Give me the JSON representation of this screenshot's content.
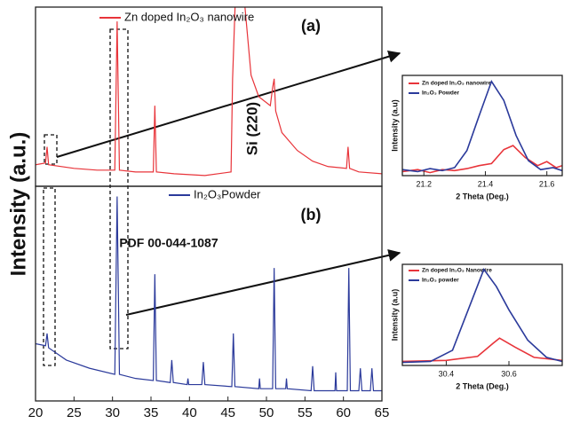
{
  "figure": {
    "ylabel": "Intensity (a.u.)"
  },
  "chart_data": [
    {
      "type": "line",
      "xlim": [
        20,
        65
      ],
      "ylim": [
        0,
        100
      ],
      "series": [
        {
          "name": "Zn doped In₂O₃ nanowire",
          "color": "#e8343a",
          "x": [
            20,
            21.3,
            21.5,
            21.7,
            25,
            28,
            30.3,
            30.6,
            30.9,
            33,
            35.3,
            35.5,
            35.7,
            38,
            42,
            45.4,
            45.6,
            46,
            47,
            48,
            49,
            50.5,
            50.8,
            51,
            51.2,
            52,
            54,
            56,
            58,
            60.4,
            60.6,
            60.8,
            62,
            65
          ],
          "values": [
            12,
            13,
            22,
            12,
            10,
            9,
            9,
            92,
            9,
            8,
            8,
            45,
            8,
            7,
            6,
            8,
            60,
            110,
            110,
            62,
            50,
            45,
            55,
            60,
            42,
            30,
            20,
            14,
            11,
            10,
            22,
            10,
            8,
            7
          ]
        }
      ],
      "annotations": [
        "(a)",
        "Si (220)"
      ]
    },
    {
      "type": "line",
      "xlim": [
        20,
        65
      ],
      "ylim": [
        0,
        105
      ],
      "xticks": [
        20,
        25,
        30,
        35,
        40,
        45,
        50,
        55,
        60,
        65
      ],
      "xlabel": "2 Theta (Deg.)",
      "series": [
        {
          "name": "In₂O₃Powder",
          "color": "#2b3a9b",
          "x": [
            20,
            21.3,
            21.5,
            21.7,
            24,
            27,
            30.3,
            30.6,
            30.9,
            33,
            35.3,
            35.5,
            35.7,
            37.5,
            37.7,
            37.9,
            39.7,
            39.8,
            39.9,
            41.6,
            41.8,
            42,
            45.5,
            45.7,
            45.9,
            49,
            49.1,
            49.2,
            50.8,
            51,
            51.2,
            52.5,
            52.6,
            52.7,
            55.8,
            56,
            56.2,
            58.9,
            59,
            59.1,
            60.5,
            60.7,
            60.9,
            62,
            62.2,
            62.4,
            63.5,
            63.7,
            63.9,
            65
          ],
          "values": [
            28,
            27,
            33,
            26,
            20,
            16,
            13,
            100,
            13,
            11,
            10,
            62,
            10,
            9,
            20,
            9,
            8,
            11,
            8,
            8,
            19,
            8,
            7,
            33,
            7,
            6,
            11,
            6,
            6,
            65,
            6,
            6,
            11,
            6,
            5,
            17,
            5,
            5,
            14,
            5,
            5,
            65,
            5,
            5,
            16,
            5,
            5,
            16,
            5,
            5
          ]
        }
      ],
      "annotations": [
        "(b)",
        "PDF 00-044-1087"
      ]
    },
    {
      "type": "line",
      "xlim": [
        21.13,
        21.65
      ],
      "ylim": [
        0,
        100
      ],
      "xticks": [
        21.2,
        21.4,
        21.6
      ],
      "xlabel": "2 Theta (Deg.)",
      "ylabel": "Intensity (a.u)",
      "series": [
        {
          "name": "Zn doped In₂O₃ nanowire",
          "color": "#e8343a",
          "x": [
            21.13,
            21.18,
            21.22,
            21.26,
            21.3,
            21.34,
            21.38,
            21.42,
            21.46,
            21.49,
            21.53,
            21.57,
            21.6,
            21.63,
            21.65
          ],
          "values": [
            4,
            6,
            3,
            6,
            5,
            7,
            10,
            12,
            26,
            30,
            18,
            10,
            14,
            8,
            10
          ]
        },
        {
          "name": "In₂O₃ Powder",
          "color": "#2b3a9b",
          "x": [
            21.13,
            21.18,
            21.22,
            21.26,
            21.3,
            21.34,
            21.38,
            21.42,
            21.46,
            21.5,
            21.54,
            21.58,
            21.62,
            21.65
          ],
          "values": [
            6,
            4,
            7,
            5,
            8,
            25,
            60,
            94,
            75,
            40,
            15,
            6,
            8,
            5
          ]
        }
      ]
    },
    {
      "type": "line",
      "xlim": [
        30.26,
        30.77
      ],
      "ylim": [
        0,
        100
      ],
      "xticks": [
        30.4,
        30.6
      ],
      "xlabel": "2 Theta (Deg.)",
      "ylabel": "Intensity (a.u)",
      "series": [
        {
          "name": "Zn doped In₂O₃ Nanowire",
          "color": "#e8343a",
          "x": [
            30.26,
            30.4,
            30.5,
            30.55,
            30.57,
            30.62,
            30.68,
            30.77
          ],
          "values": [
            4,
            5,
            9,
            22,
            27,
            18,
            8,
            5
          ]
        },
        {
          "name": "In₂O₃ powder",
          "color": "#2b3a9b",
          "x": [
            30.26,
            30.35,
            30.42,
            30.47,
            30.52,
            30.56,
            30.6,
            30.66,
            30.72,
            30.77
          ],
          "values": [
            3,
            4,
            15,
            55,
            95,
            78,
            55,
            25,
            8,
            4
          ]
        }
      ]
    }
  ]
}
